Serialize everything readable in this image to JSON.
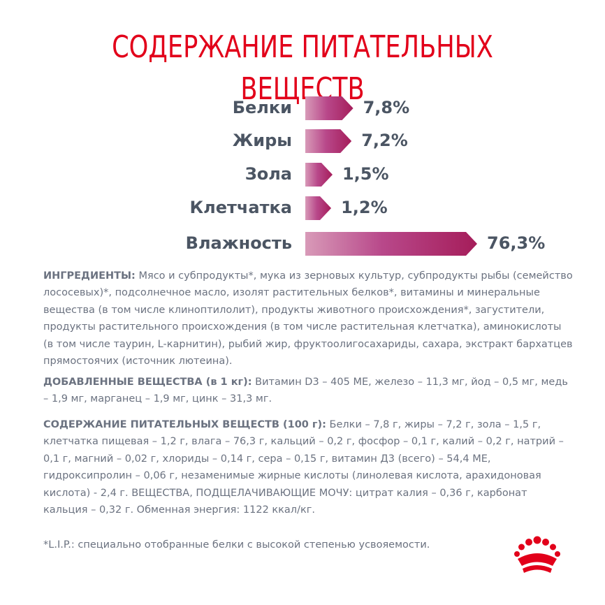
{
  "title": "СОДЕРЖАНИЕ ПИТАТЕЛЬНЫХ ВЕЩЕСТВ",
  "nutrients": [
    {
      "label": "Белки",
      "value": "7,8%",
      "percent": 7.8
    },
    {
      "label": "Жиры",
      "value": "7,2%",
      "percent": 7.2
    },
    {
      "label": "Зола",
      "value": "1,5%",
      "percent": 1.5
    },
    {
      "label": "Клетчатка",
      "value": "1,2%",
      "percent": 1.2
    },
    {
      "label": "Влажность",
      "value": "76,3%",
      "percent": 76.3
    }
  ],
  "ingredients": {
    "lead": "ИНГРЕДИЕНТЫ:",
    "text": "Мясо и субпродукты*, мука из зерновых культур, субпродукты рыбы (семейство лососевых)*, подсолнечное масло, изолят растительных белков*, витамины и минеральные вещества (в том числе клиноптилолит), продукты животного происхождения*, загустители, продукты растительного происхождения (в том числе растительная клетчатка), аминокислоты (в том числе таурин, L-карнитин), рыбий жир, фруктоолигосахариды, сахара, экстракт бархатцев прямостоячих (источник лютеина)."
  },
  "additives": {
    "lead": "ДОБАВЛЕННЫЕ ВЕЩЕСТВА (в 1 кг):",
    "text": "Витамин D3 – 405 МЕ, железо – 11,3 мг, йод – 0,5 мг, медь – 1,9 мг, марганец – 1,9 мг, цинк – 31,3 мг."
  },
  "composition": {
    "lead": "СОДЕРЖАНИЕ ПИТАТЕЛЬНЫХ ВЕЩЕСТВ (100 г):",
    "text": "Белки – 7,8 г, жиры – 7,2 г, зола – 1,5 г, клетчатка пищевая – 1,2 г, влага – 76,3 г, кальций – 0,2 г, фосфор – 0,1 г, калий – 0,2 г, натрий – 0,1 г, магний – 0,02 г, хлориды – 0,14 г, сера – 0,15 г, витамин Д3 (всего) – 54,4 МЕ, гидроксипролин – 0,06 г, незаменимые жирные кислоты (линолевая кислота, арахидоновая кислота) - 2,4 г. ВЕЩЕСТВА, ПОДЩЕЛАЧИВАЮЩИЕ МОЧУ: цитрат калия – 0,36 г, карбонат кальция – 0,32 г. Обменная энергия: 1122 ккал/кг."
  },
  "footnote": "*L.I.P.: специально отобранные белки с высокой степенью усвояемости.",
  "colors": {
    "brand_red": "#e2001a",
    "bar_dark": "#a51d5a",
    "bar_light": "#d89ab8",
    "text_gray": "#6b7280"
  },
  "logo_icon": "crown-icon"
}
